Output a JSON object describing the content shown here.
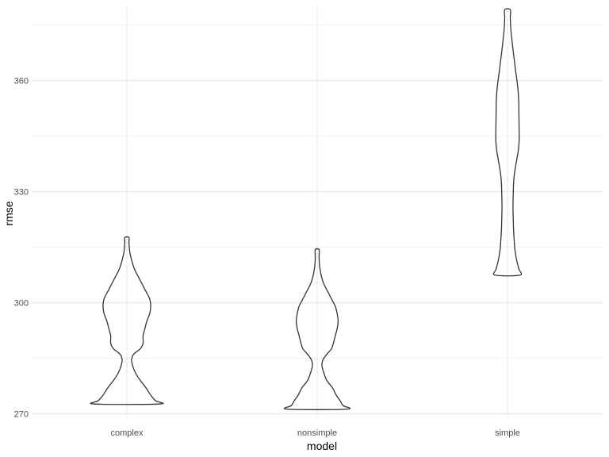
{
  "chart_data": {
    "type": "violin",
    "xlabel": "model",
    "ylabel": "rmse",
    "categories": [
      "complex",
      "nonsimple",
      "simple"
    ],
    "y_ticks": [
      270,
      300,
      330,
      360
    ],
    "y_tick_labels": [
      "270",
      "300",
      "330",
      "360"
    ],
    "ylim": [
      269,
      380
    ],
    "grid": true,
    "outline_color": "#333333",
    "series": [
      {
        "category": "complex",
        "y_min": 272.6,
        "y_max": 317.6,
        "profile": [
          [
            272.6,
            0.34
          ],
          [
            273.5,
            0.3
          ],
          [
            275,
            0.25
          ],
          [
            277,
            0.2
          ],
          [
            279,
            0.14
          ],
          [
            281,
            0.09
          ],
          [
            283,
            0.06
          ],
          [
            284.5,
            0.05
          ],
          [
            286,
            0.07
          ],
          [
            287.5,
            0.14
          ],
          [
            289,
            0.17
          ],
          [
            291,
            0.17
          ],
          [
            293,
            0.19
          ],
          [
            295,
            0.21
          ],
          [
            297,
            0.24
          ],
          [
            299,
            0.25
          ],
          [
            301,
            0.24
          ],
          [
            303,
            0.2
          ],
          [
            305,
            0.16
          ],
          [
            307,
            0.12
          ],
          [
            309,
            0.08
          ],
          [
            311,
            0.055
          ],
          [
            313,
            0.035
          ],
          [
            315,
            0.025
          ],
          [
            316.5,
            0.022
          ],
          [
            317.6,
            0.022
          ]
        ]
      },
      {
        "category": "nonsimple",
        "y_min": 271.2,
        "y_max": 314.3,
        "profile": [
          [
            271.2,
            0.31
          ],
          [
            272.2,
            0.27
          ],
          [
            273.5,
            0.24
          ],
          [
            275,
            0.2
          ],
          [
            277,
            0.16
          ],
          [
            279,
            0.1
          ],
          [
            281,
            0.07
          ],
          [
            283,
            0.05
          ],
          [
            284.5,
            0.06
          ],
          [
            286,
            0.1
          ],
          [
            287.5,
            0.15
          ],
          [
            289,
            0.17
          ],
          [
            291,
            0.19
          ],
          [
            293,
            0.21
          ],
          [
            295,
            0.22
          ],
          [
            297,
            0.21
          ],
          [
            299,
            0.19
          ],
          [
            301,
            0.15
          ],
          [
            303,
            0.11
          ],
          [
            305,
            0.07
          ],
          [
            307,
            0.045
          ],
          [
            309,
            0.03
          ],
          [
            311,
            0.022
          ],
          [
            312.5,
            0.02
          ],
          [
            314.3,
            0.02
          ]
        ]
      },
      {
        "category": "simple",
        "y_min": 307.4,
        "y_max": 379.1,
        "profile": [
          [
            307.4,
            0.13
          ],
          [
            309,
            0.12
          ],
          [
            311,
            0.1
          ],
          [
            313,
            0.085
          ],
          [
            315,
            0.075
          ],
          [
            317,
            0.07
          ],
          [
            319,
            0.065
          ],
          [
            321,
            0.062
          ],
          [
            323,
            0.06
          ],
          [
            325,
            0.058
          ],
          [
            327,
            0.058
          ],
          [
            329,
            0.06
          ],
          [
            331,
            0.062
          ],
          [
            333,
            0.066
          ],
          [
            335,
            0.074
          ],
          [
            337,
            0.086
          ],
          [
            339,
            0.1
          ],
          [
            341,
            0.113
          ],
          [
            343,
            0.121
          ],
          [
            345,
            0.123
          ],
          [
            347,
            0.122
          ],
          [
            349,
            0.121
          ],
          [
            351,
            0.12
          ],
          [
            353,
            0.119
          ],
          [
            355,
            0.117
          ],
          [
            357,
            0.112
          ],
          [
            359,
            0.104
          ],
          [
            361,
            0.094
          ],
          [
            363,
            0.083
          ],
          [
            365,
            0.074
          ],
          [
            367,
            0.064
          ],
          [
            369,
            0.055
          ],
          [
            371,
            0.046
          ],
          [
            373,
            0.038
          ],
          [
            375,
            0.032
          ],
          [
            377,
            0.029
          ],
          [
            379.1,
            0.029
          ]
        ]
      }
    ]
  }
}
